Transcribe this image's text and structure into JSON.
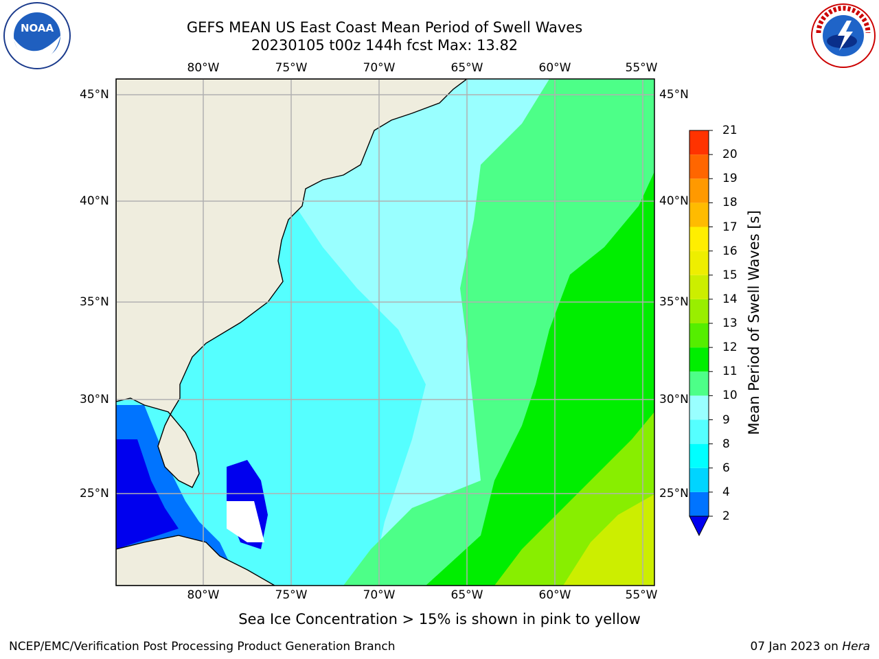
{
  "title_line1": "GEFS MEAN US East Coast Mean Period of Swell Waves",
  "title_line2": "20230105 t00z 144h fcst   Max: 13.82",
  "lon_labels": [
    "80°W",
    "75°W",
    "70°W",
    "65°W",
    "60°W",
    "55°W"
  ],
  "lat_labels": [
    "45°N",
    "40°N",
    "35°N",
    "30°N",
    "25°N"
  ],
  "colorbar": {
    "label": "Mean Period of Swell Waves [s]",
    "ticks": [
      "2",
      "4",
      "6",
      "8",
      "9",
      "10",
      "11",
      "12",
      "13",
      "14",
      "15",
      "16",
      "17",
      "18",
      "19",
      "20",
      "21"
    ],
    "colors": [
      "#0074ff",
      "#00d4ff",
      "#00ffff",
      "#55ffff",
      "#99ffff",
      "#4dff88",
      "#00ee00",
      "#55ee00",
      "#99ee00",
      "#ccee00",
      "#eeee00",
      "#ffee00",
      "#ffbb00",
      "#ff9900",
      "#ff6600",
      "#ff3300",
      "#ff0000"
    ],
    "extend_color": "#0000ee"
  },
  "caption": "Sea Ice Concentration > 15% is shown in pink to yellow",
  "credit_left": "NCEP/EMC/Verification Post Processing Product Generation Branch",
  "credit_right_date": "07 Jan 2023 on ",
  "credit_right_machine": "Hera",
  "logos": {
    "left": "noaa-logo",
    "left_text": "NOAA",
    "right": "nws-logo",
    "right_text": "NATIONAL WEATHER SERVICE"
  }
}
